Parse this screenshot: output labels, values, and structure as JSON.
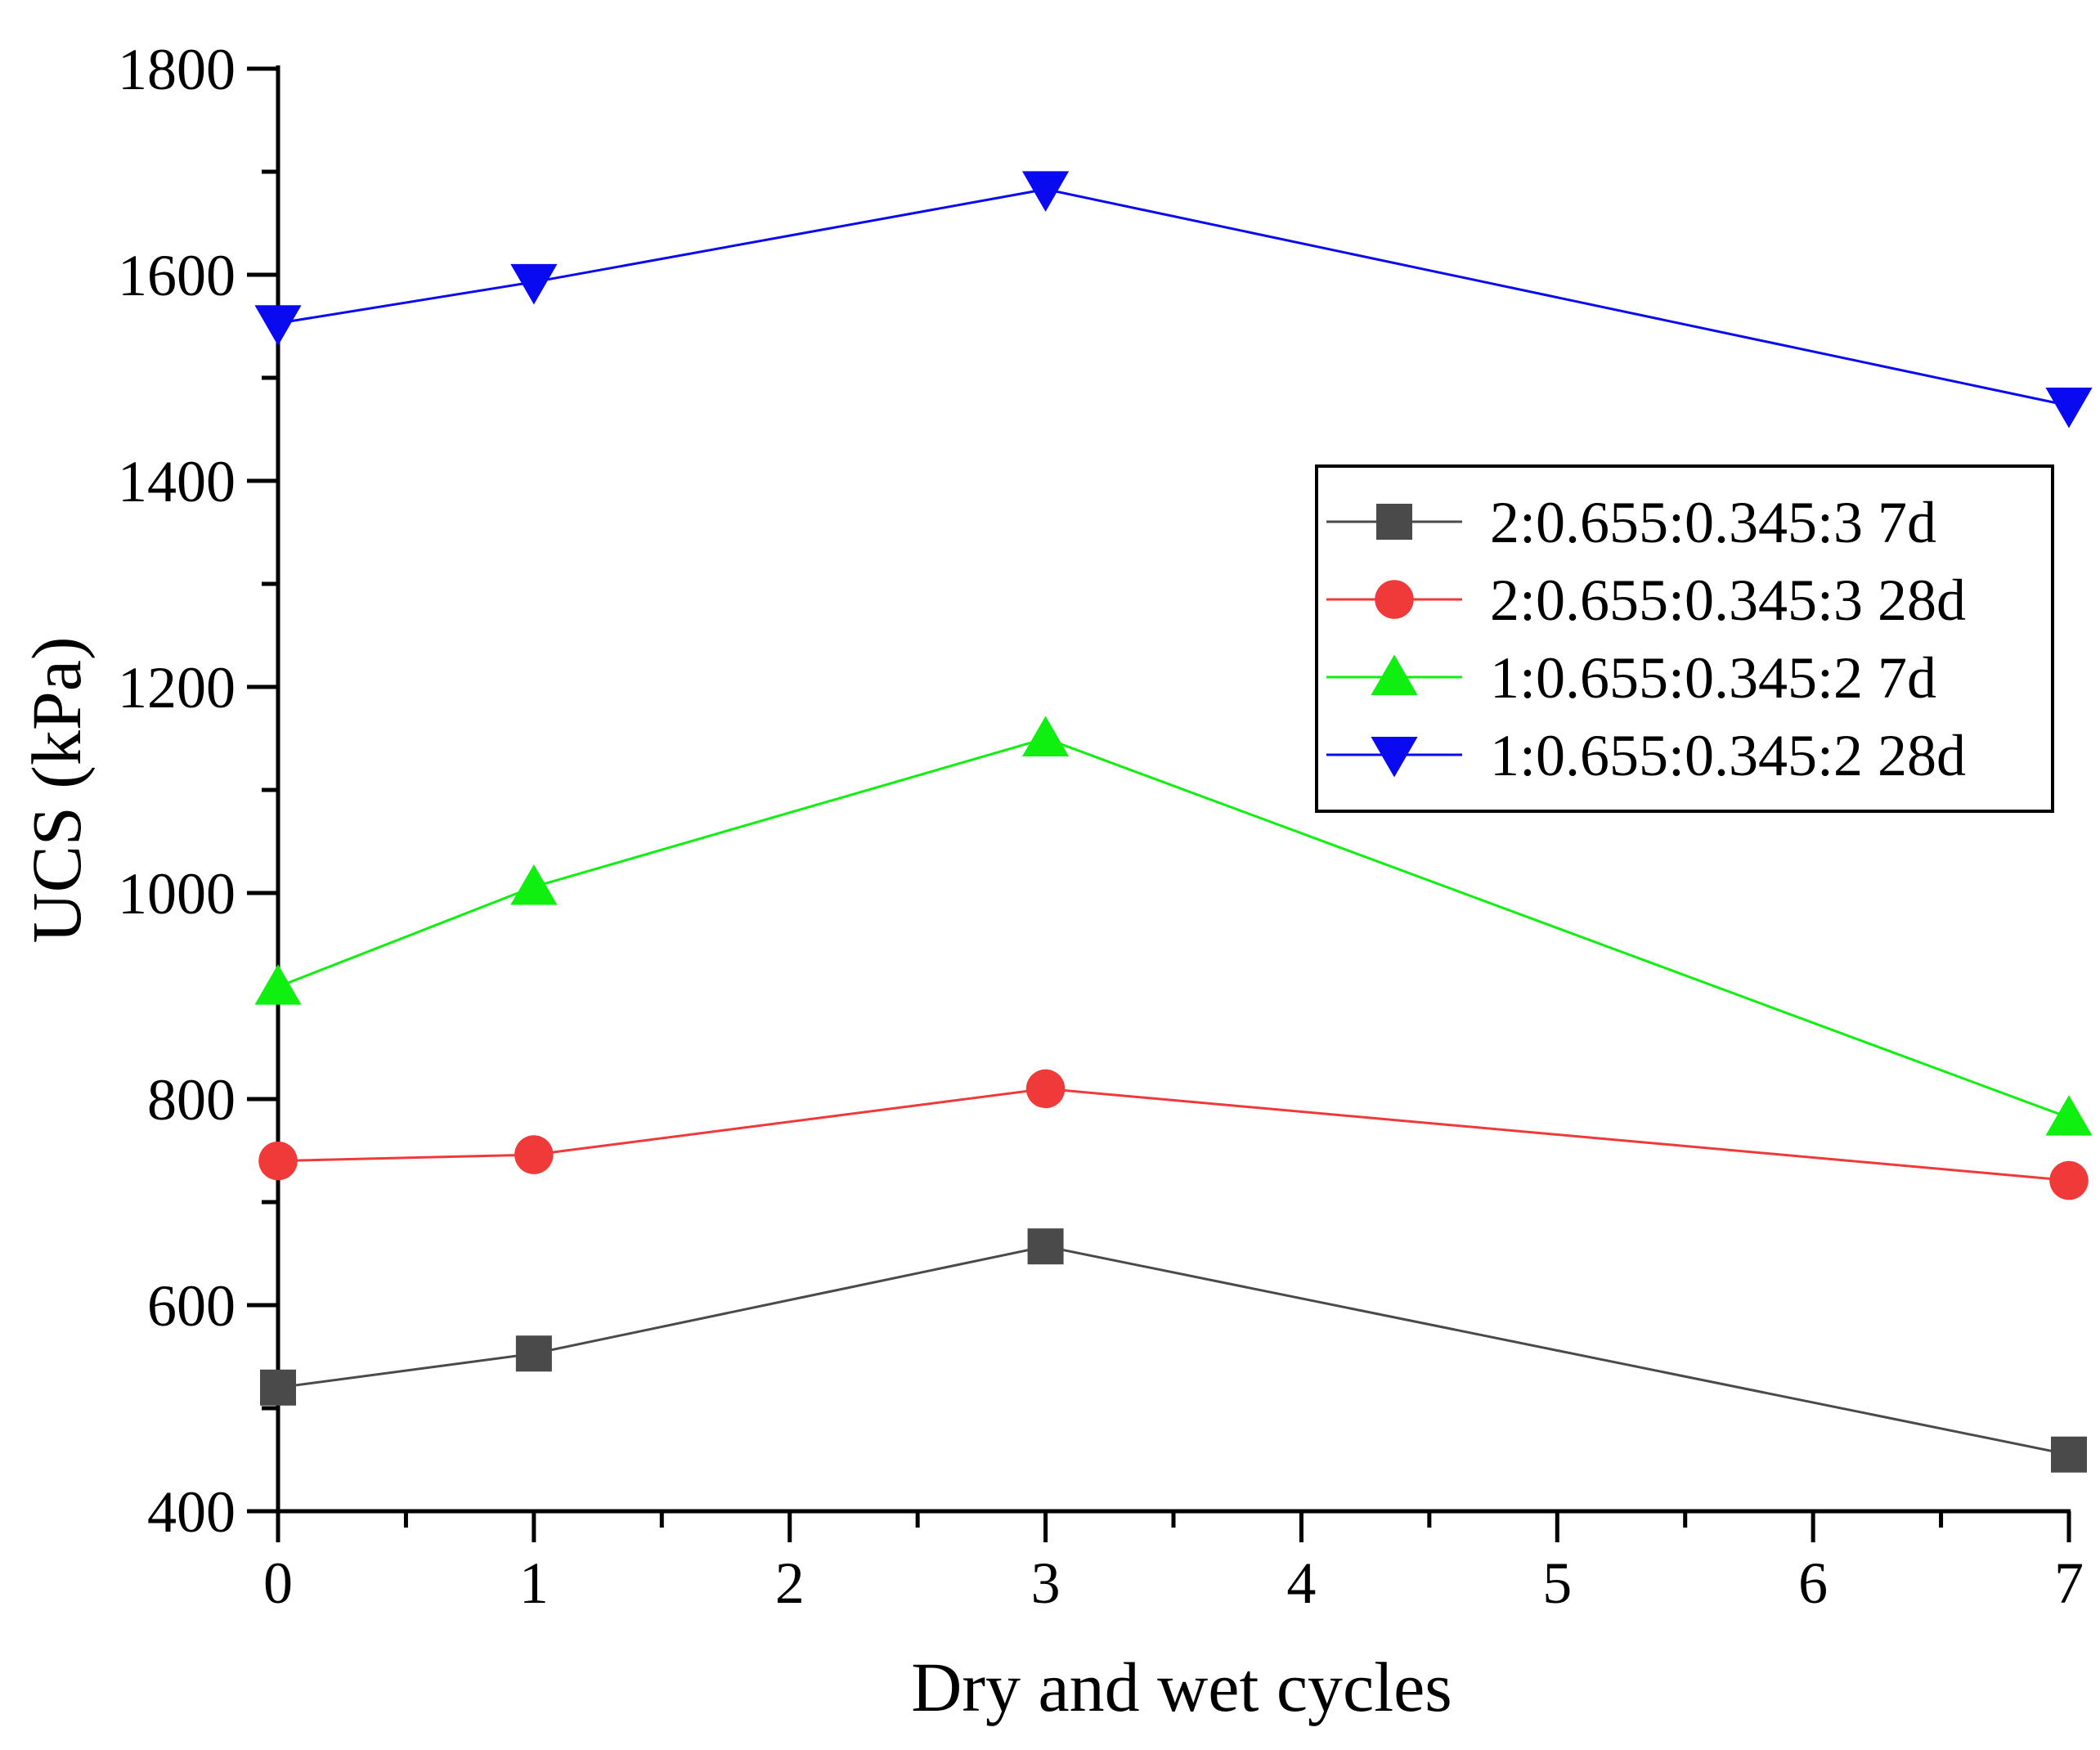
{
  "chart_data": {
    "type": "line",
    "xlabel": "Dry and wet cycles",
    "ylabel": "UCS (kPa)",
    "xlim": [
      0,
      7
    ],
    "ylim": [
      400,
      1800
    ],
    "x_ticks": [
      0,
      1,
      2,
      3,
      4,
      5,
      6,
      7
    ],
    "y_ticks": [
      400,
      600,
      800,
      1000,
      1200,
      1400,
      1600,
      1800
    ],
    "x": [
      0,
      1,
      3,
      7
    ],
    "grid": false,
    "legend_position": "right",
    "series": [
      {
        "name": "2:0.655:0.345:3 7d",
        "values": [
          520,
          553,
          657,
          455
        ],
        "color": "#4a4a4a",
        "marker": "square"
      },
      {
        "name": "2:0.655:0.345:3 28d",
        "values": [
          740,
          746,
          810,
          721
        ],
        "color": "#f03a3a",
        "marker": "circle"
      },
      {
        "name": "1:0.655:0.345:2 7d",
        "values": [
          909,
          1006,
          1150,
          782
        ],
        "color": "#10f010",
        "marker": "triangle-up"
      },
      {
        "name": "1:0.655:0.345:2 28d",
        "values": [
          1553,
          1593,
          1683,
          1473
        ],
        "color": "#0a0af0",
        "marker": "triangle-down"
      }
    ]
  }
}
